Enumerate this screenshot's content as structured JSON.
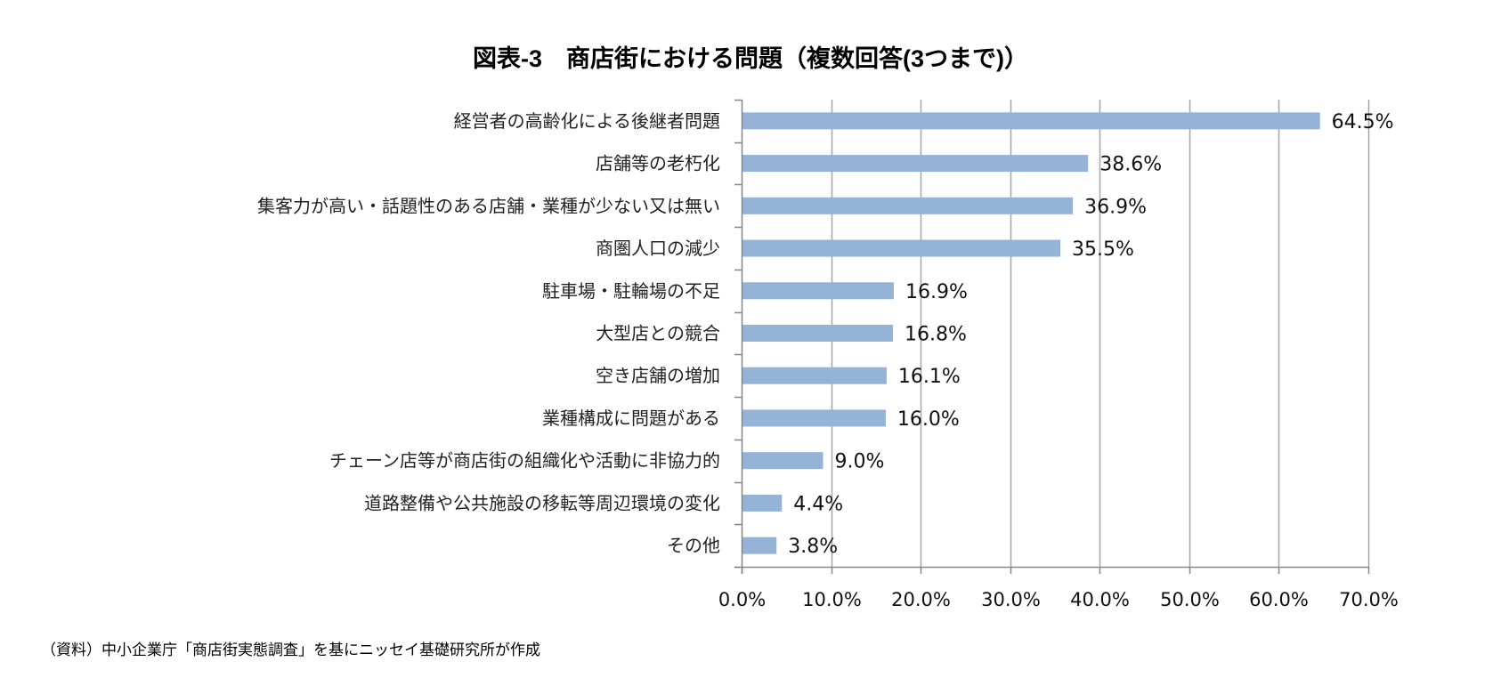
{
  "chart_data": {
    "type": "bar",
    "orientation": "horizontal",
    "title": "図表-3　商店街における問題（複数回答(3つまで)）",
    "categories": [
      "経営者の高齢化による後継者問題",
      "店舗等の老朽化",
      "集客力が高い・話題性のある店舗・業種が少ない又は無い",
      "商圏人口の減少",
      "駐車場・駐輪場の不足",
      "大型店との競合",
      "空き店舗の増加",
      "業種構成に問題がある",
      "チェーン店等が商店街の組織化や活動に非協力的",
      "道路整備や公共施設の移転等周辺環境の変化",
      "その他"
    ],
    "values": [
      64.5,
      38.6,
      36.9,
      35.5,
      16.9,
      16.8,
      16.1,
      16.0,
      9.0,
      4.4,
      3.8
    ],
    "data_labels": [
      "64.5%",
      "38.6%",
      "36.9%",
      "35.5%",
      "16.9%",
      "16.8%",
      "16.1%",
      "16.0%",
      "9.0%",
      "4.4%",
      "3.8%"
    ],
    "xlim": [
      0,
      70
    ],
    "xticks": [
      0,
      10,
      20,
      30,
      40,
      50,
      60,
      70
    ],
    "xtick_labels": [
      "0.0%",
      "10.0%",
      "20.0%",
      "30.0%",
      "40.0%",
      "50.0%",
      "60.0%",
      "70.0%"
    ],
    "xlabel": "",
    "ylabel": "",
    "grid": true,
    "legend": "none",
    "bar_color": "#95B3D7",
    "grid_color": "#A6A6A6"
  },
  "source_note": "（資料）中小企業庁「商店街実態調査」を基にニッセイ基礎研究所が作成"
}
